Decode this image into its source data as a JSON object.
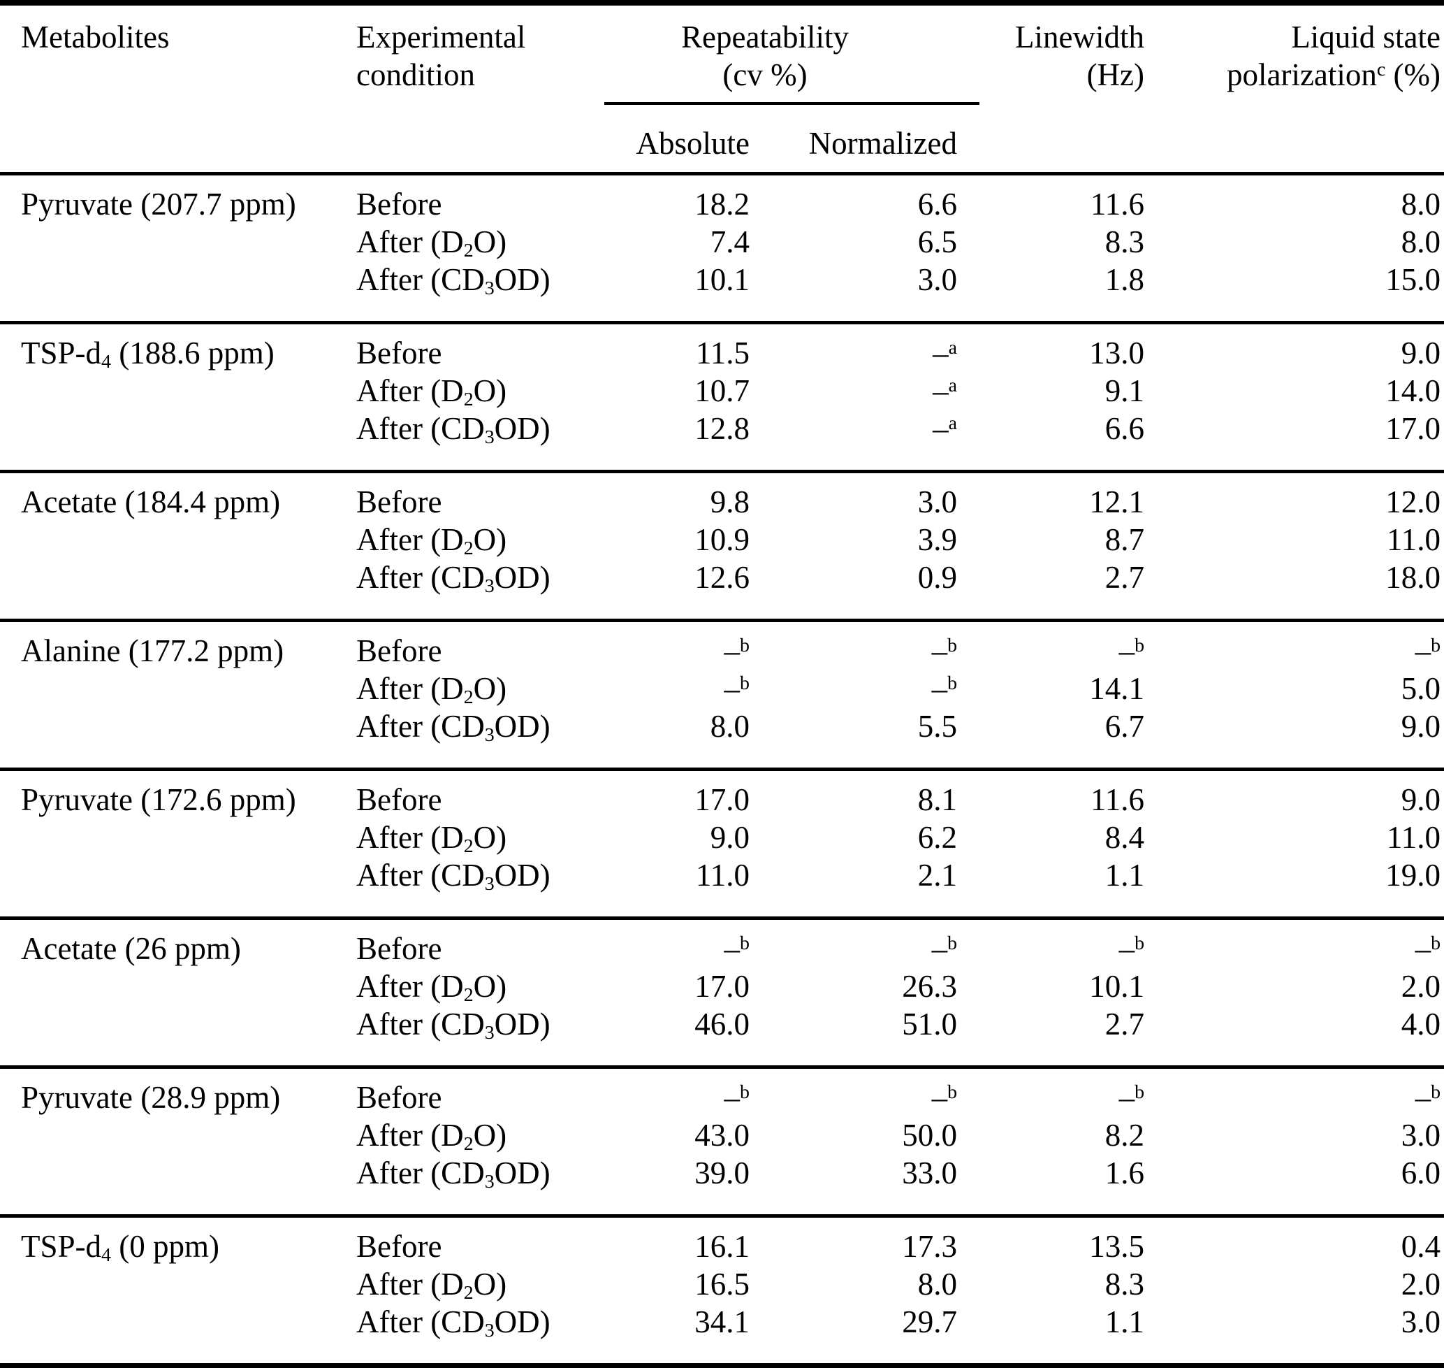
{
  "table": {
    "header": {
      "metabolites": "Metabolites",
      "experimental_condition": "Experimental\ncondition",
      "repeatability": "Repeatability\n(cv %)",
      "absolute": "Absolute",
      "normalized": "Normalized",
      "linewidth": "Linewidth\n(Hz)",
      "liquid_state_polarization": "Liquid state\npolarization^c (%)"
    },
    "missing_value_markers": {
      "footnote_a": "–^a",
      "footnote_b": "–^b"
    },
    "groups": [
      {
        "metabolite": "Pyruvate (207.7 ppm)",
        "rows": [
          {
            "condition": "Before",
            "absolute": "18.2",
            "normalized": "6.6",
            "linewidth": "11.6",
            "polarization": "8.0"
          },
          {
            "condition": "After (D_2O)",
            "absolute": "7.4",
            "normalized": "6.5",
            "linewidth": "8.3",
            "polarization": "8.0"
          },
          {
            "condition": "After (CD_3OD)",
            "absolute": "10.1",
            "normalized": "3.0",
            "linewidth": "1.8",
            "polarization": "15.0"
          }
        ]
      },
      {
        "metabolite": "TSP-d_4 (188.6 ppm)",
        "rows": [
          {
            "condition": "Before",
            "absolute": "11.5",
            "normalized": "–^a",
            "linewidth": "13.0",
            "polarization": "9.0"
          },
          {
            "condition": "After (D_2O)",
            "absolute": "10.7",
            "normalized": "–^a",
            "linewidth": "9.1",
            "polarization": "14.0"
          },
          {
            "condition": "After (CD_3OD)",
            "absolute": "12.8",
            "normalized": "–^a",
            "linewidth": "6.6",
            "polarization": "17.0"
          }
        ]
      },
      {
        "metabolite": "Acetate (184.4 ppm)",
        "rows": [
          {
            "condition": "Before",
            "absolute": "9.8",
            "normalized": "3.0",
            "linewidth": "12.1",
            "polarization": "12.0"
          },
          {
            "condition": "After (D_2O)",
            "absolute": "10.9",
            "normalized": "3.9",
            "linewidth": "8.7",
            "polarization": "11.0"
          },
          {
            "condition": "After (CD_3OD)",
            "absolute": "12.6",
            "normalized": "0.9",
            "linewidth": "2.7",
            "polarization": "18.0"
          }
        ]
      },
      {
        "metabolite": "Alanine (177.2 ppm)",
        "rows": [
          {
            "condition": "Before",
            "absolute": "–^b",
            "normalized": "–^b",
            "linewidth": "–^b",
            "polarization": "–^b"
          },
          {
            "condition": "After (D_2O)",
            "absolute": "–^b",
            "normalized": "–^b",
            "linewidth": "14.1",
            "polarization": "5.0"
          },
          {
            "condition": "After (CD_3OD)",
            "absolute": "8.0",
            "normalized": "5.5",
            "linewidth": "6.7",
            "polarization": "9.0"
          }
        ]
      },
      {
        "metabolite": "Pyruvate (172.6 ppm)",
        "rows": [
          {
            "condition": "Before",
            "absolute": "17.0",
            "normalized": "8.1",
            "linewidth": "11.6",
            "polarization": "9.0"
          },
          {
            "condition": "After (D_2O)",
            "absolute": "9.0",
            "normalized": "6.2",
            "linewidth": "8.4",
            "polarization": "11.0"
          },
          {
            "condition": "After (CD_3OD)",
            "absolute": "11.0",
            "normalized": "2.1",
            "linewidth": "1.1",
            "polarization": "19.0"
          }
        ]
      },
      {
        "metabolite": "Acetate (26 ppm)",
        "rows": [
          {
            "condition": "Before",
            "absolute": "–^b",
            "normalized": "–^b",
            "linewidth": "–^b",
            "polarization": "–^b"
          },
          {
            "condition": "After (D_2O)",
            "absolute": "17.0",
            "normalized": "26.3",
            "linewidth": "10.1",
            "polarization": "2.0"
          },
          {
            "condition": "After (CD_3OD)",
            "absolute": "46.0",
            "normalized": "51.0",
            "linewidth": "2.7",
            "polarization": "4.0"
          }
        ]
      },
      {
        "metabolite": "Pyruvate (28.9 ppm)",
        "rows": [
          {
            "condition": "Before",
            "absolute": "–^b",
            "normalized": "–^b",
            "linewidth": "–^b",
            "polarization": "–^b"
          },
          {
            "condition": "After (D_2O)",
            "absolute": "43.0",
            "normalized": "50.0",
            "linewidth": "8.2",
            "polarization": "3.0"
          },
          {
            "condition": "After (CD_3OD)",
            "absolute": "39.0",
            "normalized": "33.0",
            "linewidth": "1.6",
            "polarization": "6.0"
          }
        ]
      },
      {
        "metabolite": "TSP-d_4 (0 ppm)",
        "rows": [
          {
            "condition": "Before",
            "absolute": "16.1",
            "normalized": "17.3",
            "linewidth": "13.5",
            "polarization": "0.4"
          },
          {
            "condition": "After (D_2O)",
            "absolute": "16.5",
            "normalized": "8.0",
            "linewidth": "8.3",
            "polarization": "2.0"
          },
          {
            "condition": "After (CD_3OD)",
            "absolute": "34.1",
            "normalized": "29.7",
            "linewidth": "1.1",
            "polarization": "3.0"
          }
        ]
      }
    ]
  }
}
